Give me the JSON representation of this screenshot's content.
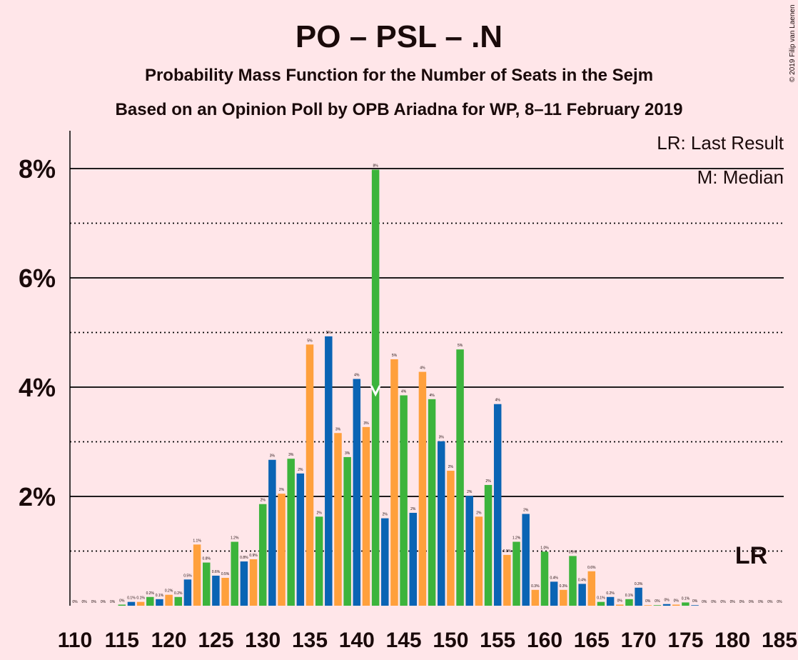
{
  "chart_data": {
    "type": "bar",
    "title": "PO – PSL – .N",
    "subtitle": "Probability Mass Function for the Number of Seats in the Sejm",
    "subtitle2": "Based on an Opinion Poll by OPB Ariadna for WP, 8–11 February 2019",
    "copyright": "© 2019 Filip van Laenen",
    "legend": {
      "lr": "LR: Last Result",
      "m": "M: Median",
      "placement": "top-right"
    },
    "lr_marker": "LR",
    "median_marker_seat": 142,
    "last_result_seat": 182,
    "last_result_probability": 1.0,
    "x_start": 110,
    "x_ticks": [
      "110",
      "115",
      "120",
      "125",
      "130",
      "135",
      "140",
      "145",
      "150",
      "155",
      "160",
      "165",
      "170",
      "175",
      "180",
      "185"
    ],
    "y_ticks": [
      {
        "value": 2,
        "label": "2%"
      },
      {
        "value": 4,
        "label": "4%"
      },
      {
        "value": 6,
        "label": "6%"
      },
      {
        "value": 8,
        "label": "8%"
      }
    ],
    "ylim": [
      0,
      8.7
    ],
    "grid": "solid at even percents, dotted at odd percents",
    "colors": {
      "blue": "#0a64b4",
      "orange": "#ffa03c",
      "green": "#3cb43c",
      "background": "#ffe6e9",
      "text": "#1a0a0a"
    },
    "series_colors": [
      "blue",
      "orange",
      "green"
    ],
    "values": [
      0,
      0,
      0,
      0,
      0,
      0.02,
      0.07,
      0.07,
      0.16,
      0.12,
      0.2,
      0.16,
      0.48,
      1.12,
      0.79,
      0.55,
      0.51,
      1.17,
      0.81,
      0.85,
      1.86,
      2.67,
      2.05,
      2.69,
      2.42,
      4.78,
      1.63,
      4.93,
      3.16,
      2.72,
      4.15,
      3.27,
      7.98,
      1.6,
      4.51,
      3.85,
      1.7,
      4.28,
      3.78,
      3.01,
      2.47,
      4.69,
      2.01,
      1.63,
      2.21,
      3.69,
      0.93,
      1.17,
      1.68,
      0.29,
      0.99,
      0.44,
      0.29,
      0.91,
      0.4,
      0.63,
      0.07,
      0.16,
      0.02,
      0.12,
      0.33,
      0.01,
      0.01,
      0.03,
      0.02,
      0.06,
      0.01,
      0,
      0,
      0,
      0,
      0,
      0,
      0,
      0,
      0
    ],
    "labels": [
      "0%",
      "0%",
      "0%",
      "0%",
      "0%",
      "0%",
      "0.1%",
      "0.1%",
      "0.2%",
      "0.1%",
      "0.2%",
      "0.2%",
      "0.5%",
      "1.1%",
      "0.8%",
      "0.6%",
      "0.5%",
      "1.2%",
      "0.8%",
      "0.9%",
      "2%",
      "3%",
      "2%",
      "3%",
      "2%",
      "5%",
      "2%",
      "5%",
      "3%",
      "3%",
      "4%",
      "3%",
      "8%",
      "2%",
      "5%",
      "4%",
      "2%",
      "4%",
      "4%",
      "3%",
      "2%",
      "5%",
      "2%",
      "2%",
      "2%",
      "4%",
      "0.9%",
      "1.2%",
      "2%",
      "0.3%",
      "1.0%",
      "0.4%",
      "0.3%",
      "0.9%",
      "0.4%",
      "0.6%",
      "0.1%",
      "0.2%",
      "0%",
      "0.1%",
      "0.3%",
      "0%",
      "0%",
      "0%",
      "0%",
      "0.1%",
      "0%",
      "0%",
      "0%",
      "0%",
      "0%",
      "0%",
      "0%",
      "0%",
      "0%",
      "0%"
    ]
  }
}
